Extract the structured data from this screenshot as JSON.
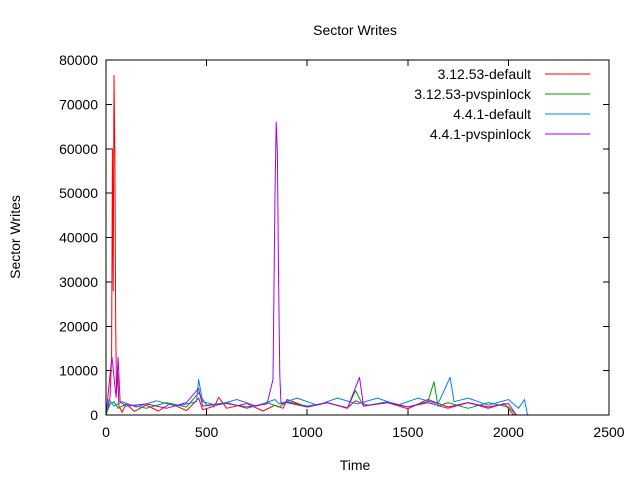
{
  "chart_data": {
    "type": "line",
    "title": "Sector Writes",
    "xlabel": "Time",
    "ylabel": "Sector Writes",
    "xlim": [
      0,
      2500
    ],
    "ylim": [
      0,
      80000
    ],
    "x_ticks": [
      0,
      500,
      1000,
      1500,
      2000,
      2500
    ],
    "y_ticks": [
      0,
      10000,
      20000,
      30000,
      40000,
      50000,
      60000,
      70000,
      80000
    ],
    "grid": false,
    "legend_position": "top-right",
    "series": [
      {
        "name": "3.12.53-default",
        "color": "#ff0000",
        "points": [
          [
            0,
            0
          ],
          [
            10,
            1500
          ],
          [
            20,
            4000
          ],
          [
            28,
            13000
          ],
          [
            32,
            60000
          ],
          [
            36,
            28000
          ],
          [
            40,
            76500
          ],
          [
            44,
            57000
          ],
          [
            48,
            20000
          ],
          [
            52,
            5000
          ],
          [
            58,
            9500
          ],
          [
            64,
            2000
          ],
          [
            80,
            600
          ],
          [
            100,
            2600
          ],
          [
            140,
            800
          ],
          [
            200,
            2200
          ],
          [
            260,
            900
          ],
          [
            320,
            2600
          ],
          [
            400,
            1000
          ],
          [
            440,
            2800
          ],
          [
            460,
            3800
          ],
          [
            480,
            1200
          ],
          [
            540,
            2000
          ],
          [
            560,
            4000
          ],
          [
            600,
            1500
          ],
          [
            700,
            2600
          ],
          [
            780,
            900
          ],
          [
            840,
            2200
          ],
          [
            880,
            1500
          ],
          [
            900,
            3500
          ],
          [
            1000,
            1800
          ],
          [
            1100,
            2800
          ],
          [
            1200,
            1600
          ],
          [
            1240,
            3200
          ],
          [
            1300,
            2200
          ],
          [
            1400,
            2800
          ],
          [
            1500,
            1400
          ],
          [
            1600,
            3500
          ],
          [
            1700,
            1800
          ],
          [
            1800,
            2800
          ],
          [
            1900,
            1500
          ],
          [
            1980,
            2600
          ],
          [
            2020,
            300
          ],
          [
            2030,
            0
          ]
        ]
      },
      {
        "name": "3.12.53-pvspinlock",
        "color": "#00a000",
        "points": [
          [
            0,
            0
          ],
          [
            20,
            2500
          ],
          [
            40,
            3000
          ],
          [
            60,
            1500
          ],
          [
            100,
            2500
          ],
          [
            200,
            1500
          ],
          [
            300,
            2800
          ],
          [
            400,
            1800
          ],
          [
            460,
            5000
          ],
          [
            500,
            2200
          ],
          [
            600,
            2800
          ],
          [
            700,
            1500
          ],
          [
            800,
            2800
          ],
          [
            860,
            1800
          ],
          [
            900,
            3000
          ],
          [
            1000,
            2000
          ],
          [
            1100,
            2800
          ],
          [
            1200,
            1500
          ],
          [
            1240,
            5500
          ],
          [
            1280,
            2000
          ],
          [
            1400,
            3000
          ],
          [
            1500,
            1800
          ],
          [
            1600,
            3000
          ],
          [
            1630,
            7500
          ],
          [
            1650,
            2000
          ],
          [
            1700,
            2800
          ],
          [
            1800,
            1500
          ],
          [
            1900,
            2800
          ],
          [
            2000,
            1800
          ],
          [
            2040,
            0
          ]
        ]
      },
      {
        "name": "4.4.1-default",
        "color": "#0080ff",
        "points": [
          [
            0,
            0
          ],
          [
            15,
            3500
          ],
          [
            40,
            2000
          ],
          [
            80,
            3000
          ],
          [
            150,
            1800
          ],
          [
            250,
            3200
          ],
          [
            350,
            2000
          ],
          [
            450,
            3000
          ],
          [
            460,
            8000
          ],
          [
            480,
            3000
          ],
          [
            550,
            2200
          ],
          [
            650,
            3500
          ],
          [
            750,
            2000
          ],
          [
            840,
            3500
          ],
          [
            860,
            2500
          ],
          [
            950,
            3800
          ],
          [
            1050,
            2200
          ],
          [
            1150,
            3800
          ],
          [
            1250,
            2500
          ],
          [
            1350,
            3800
          ],
          [
            1450,
            2200
          ],
          [
            1550,
            3800
          ],
          [
            1650,
            2500
          ],
          [
            1710,
            8500
          ],
          [
            1730,
            3000
          ],
          [
            1800,
            3800
          ],
          [
            1900,
            2200
          ],
          [
            2000,
            3500
          ],
          [
            2050,
            1500
          ],
          [
            2080,
            3500
          ],
          [
            2095,
            0
          ]
        ]
      },
      {
        "name": "4.4.1-pvspinlock",
        "color": "#a000ff",
        "points": [
          [
            0,
            0
          ],
          [
            20,
            9000
          ],
          [
            30,
            13000
          ],
          [
            50,
            4000
          ],
          [
            60,
            13000
          ],
          [
            70,
            3000
          ],
          [
            100,
            2000
          ],
          [
            200,
            2500
          ],
          [
            300,
            1500
          ],
          [
            400,
            2800
          ],
          [
            460,
            6000
          ],
          [
            480,
            2000
          ],
          [
            600,
            2600
          ],
          [
            700,
            1800
          ],
          [
            800,
            2500
          ],
          [
            830,
            8000
          ],
          [
            840,
            50000
          ],
          [
            846,
            66000
          ],
          [
            852,
            59000
          ],
          [
            858,
            30000
          ],
          [
            864,
            9000
          ],
          [
            870,
            2500
          ],
          [
            900,
            2800
          ],
          [
            1000,
            1800
          ],
          [
            1100,
            2800
          ],
          [
            1200,
            1500
          ],
          [
            1260,
            8500
          ],
          [
            1280,
            2000
          ],
          [
            1400,
            2800
          ],
          [
            1500,
            1800
          ],
          [
            1600,
            2800
          ],
          [
            1700,
            1500
          ],
          [
            1800,
            2800
          ],
          [
            1900,
            1800
          ],
          [
            2000,
            2600
          ],
          [
            2040,
            0
          ]
        ]
      }
    ]
  }
}
